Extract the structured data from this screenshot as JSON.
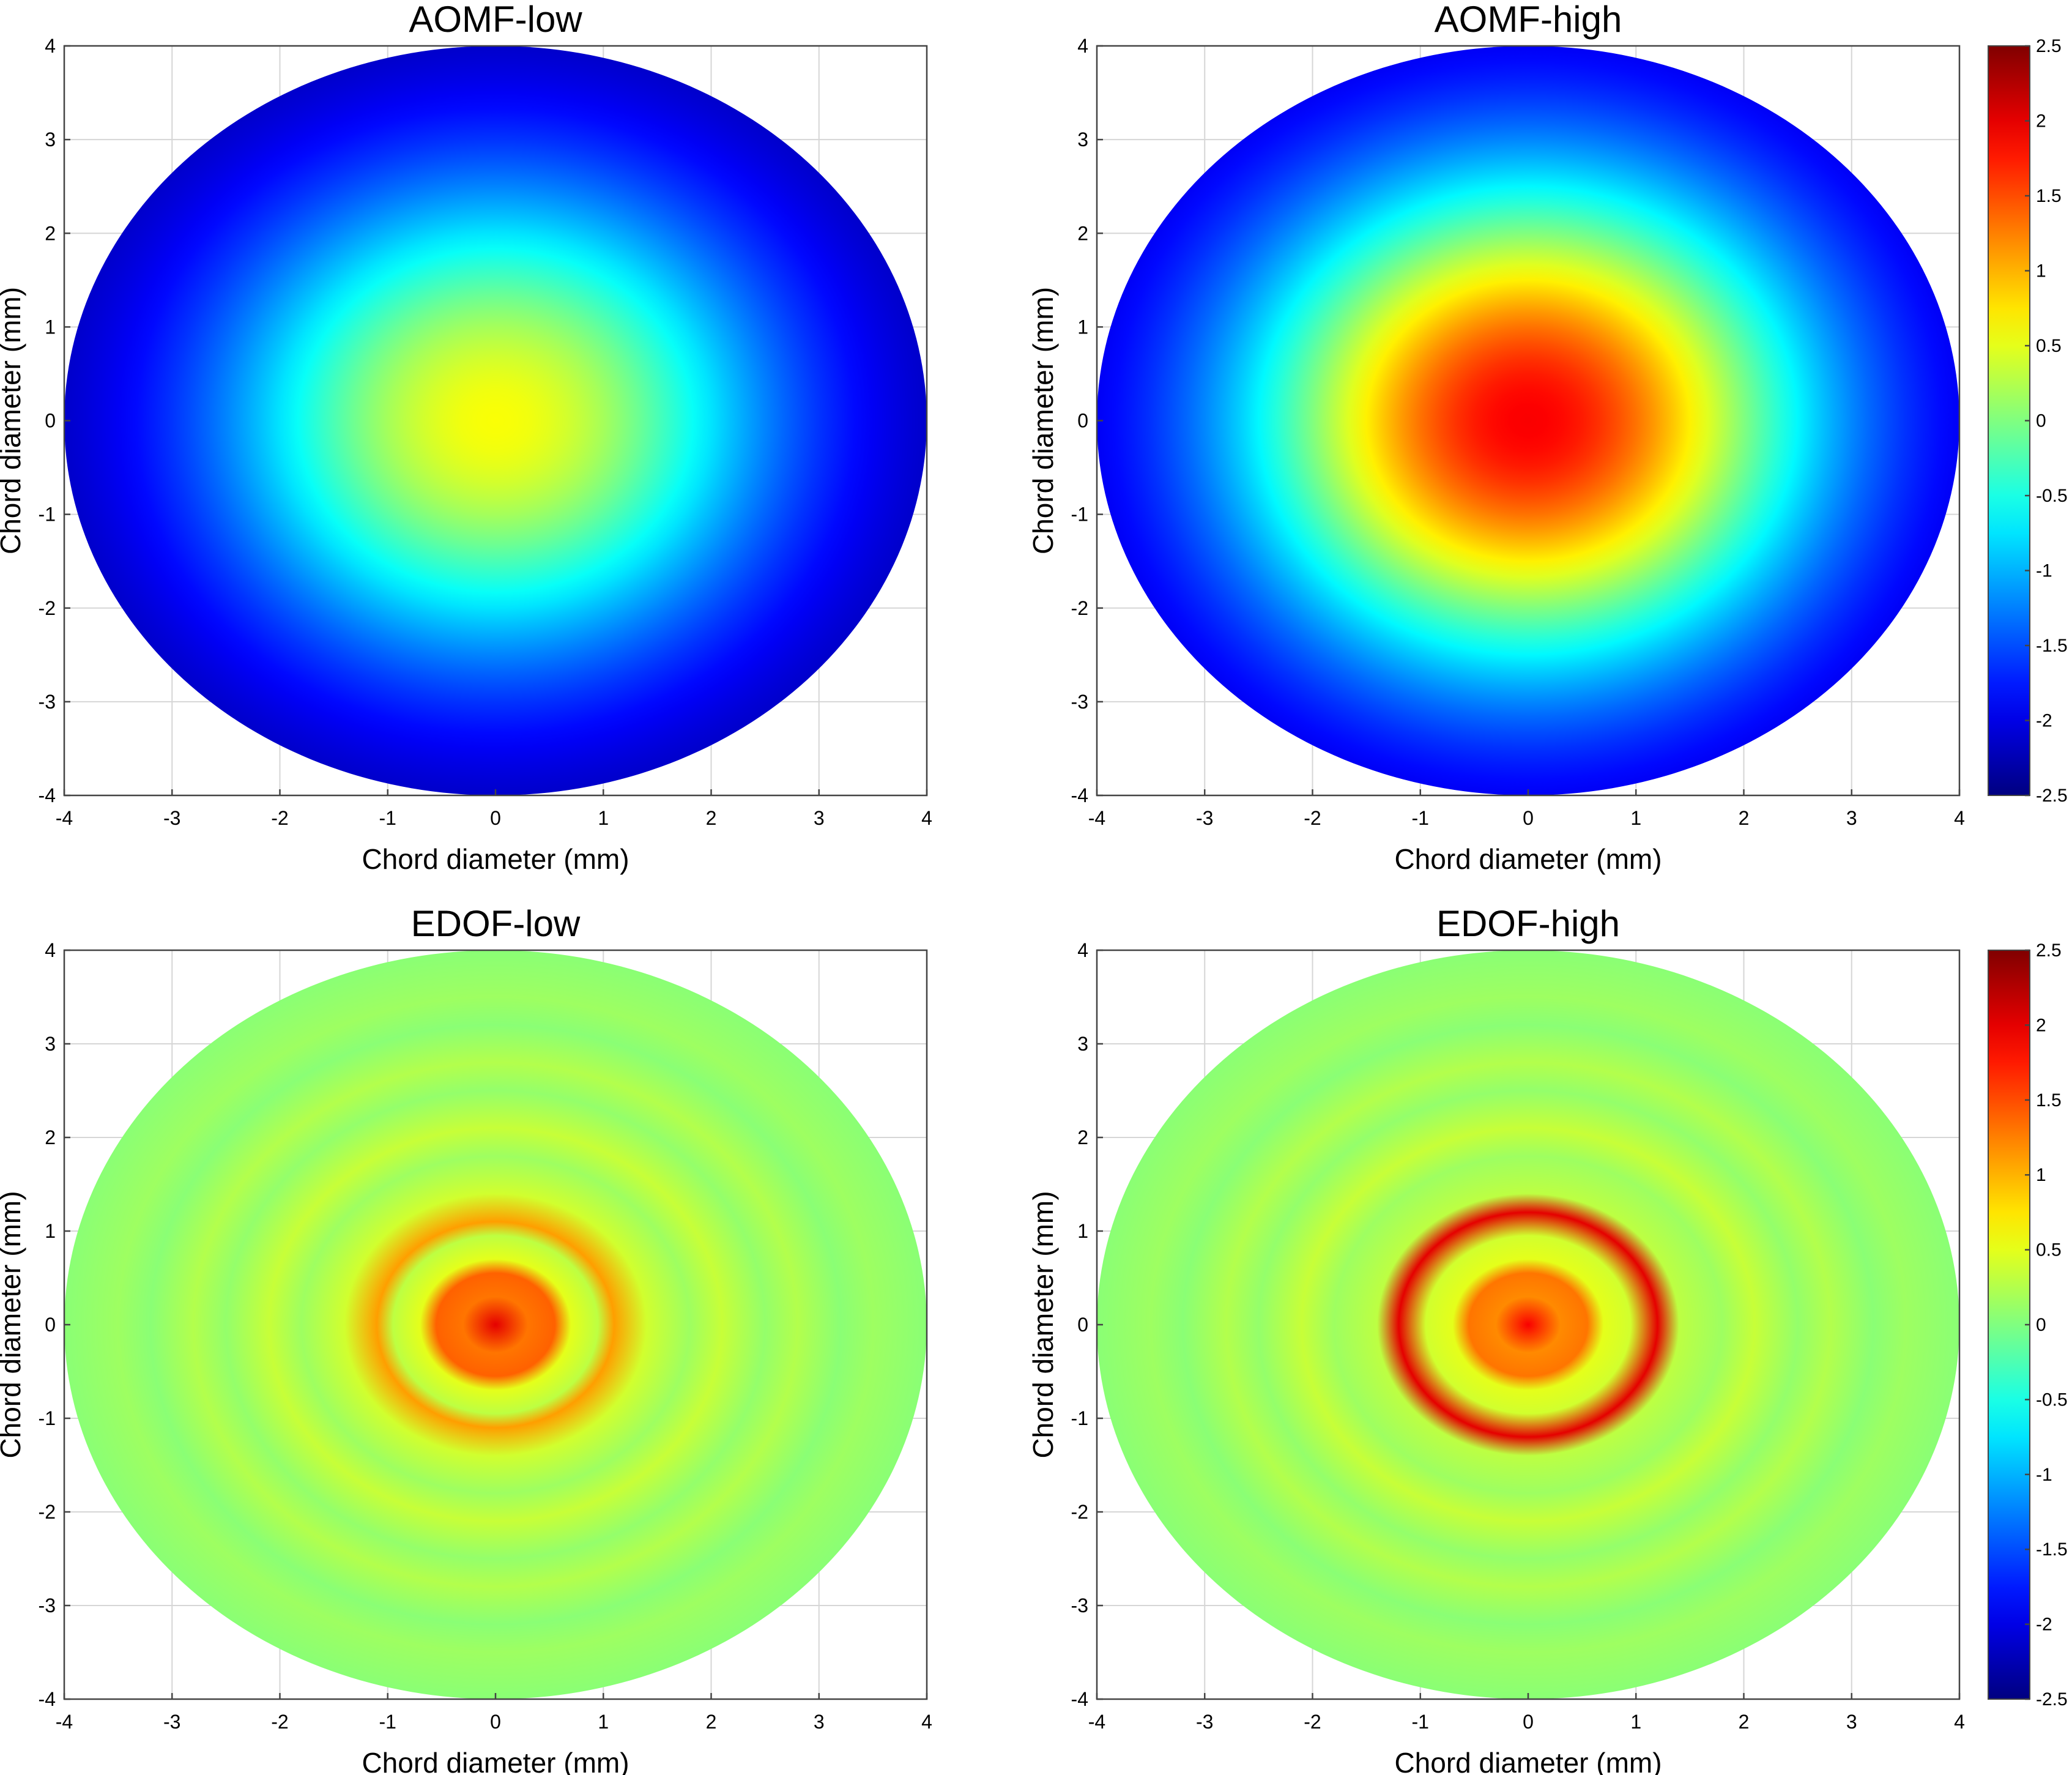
{
  "chart_data": [
    {
      "type": "heatmap",
      "title": "AOMF-low",
      "xlabel": "Chord diameter (mm)",
      "ylabel": "Chord diameter (mm)",
      "xlim": [
        -4,
        4
      ],
      "ylim": [
        -4,
        4
      ],
      "xticks": [
        "-4",
        "-3",
        "-2",
        "-1",
        "0",
        "1",
        "2",
        "3",
        "4"
      ],
      "yticks": [
        "4",
        "3",
        "2",
        "1",
        "0",
        "-1",
        "-2",
        "-3",
        "-4"
      ],
      "grid": true,
      "clim": [
        -2.5,
        2.5
      ],
      "pattern": "radial-monotonic",
      "center_value": 0.6,
      "edge_value": -2.4,
      "colorbar": false
    },
    {
      "type": "heatmap",
      "title": "AOMF-high",
      "xlabel": "Chord diameter (mm)",
      "ylabel": "Chord diameter (mm)",
      "xlim": [
        -4,
        4
      ],
      "ylim": [
        -4,
        4
      ],
      "xticks": [
        "-4",
        "-3",
        "-2",
        "-1",
        "0",
        "1",
        "2",
        "3",
        "4"
      ],
      "yticks": [
        "4",
        "3",
        "2",
        "1",
        "0",
        "-1",
        "-2",
        "-3",
        "-4"
      ],
      "grid": true,
      "clim": [
        -2.5,
        2.5
      ],
      "pattern": "radial-monotonic",
      "center_value": 1.9,
      "edge_value": -2.3,
      "colorbar": true,
      "colorbar_ticks": [
        "2.5",
        "2",
        "1.5",
        "1",
        "0.5",
        "0",
        "-0.5",
        "-1",
        "-1.5",
        "-2",
        "-2.5"
      ]
    },
    {
      "type": "heatmap",
      "title": "EDOF-low",
      "xlabel": "Chord diameter (mm)",
      "ylabel": "Chord diameter (mm)",
      "xlim": [
        -4,
        4
      ],
      "ylim": [
        -4,
        4
      ],
      "xticks": [
        "-4",
        "-3",
        "-2",
        "-1",
        "0",
        "1",
        "2",
        "3",
        "4"
      ],
      "yticks": [
        "4",
        "3",
        "2",
        "1",
        "0",
        "-1",
        "-2",
        "-3",
        "-4"
      ],
      "grid": true,
      "clim": [
        -2.5,
        2.5
      ],
      "pattern": "radial-rings",
      "profile_r": [
        0,
        0.3,
        0.55,
        0.7,
        0.95,
        1.1,
        1.4,
        1.8,
        2.1,
        2.5,
        2.8,
        3.2,
        3.5,
        4.0
      ],
      "profile_v": [
        2.0,
        1.3,
        1.4,
        0.5,
        0.3,
        1.1,
        0.4,
        0.15,
        0.35,
        0.1,
        0.25,
        0.05,
        0.15,
        0.05
      ],
      "colorbar": false
    },
    {
      "type": "heatmap",
      "title": "EDOF-high",
      "xlabel": "Chord diameter (mm)",
      "ylabel": "Chord diameter (mm)",
      "xlim": [
        -4,
        4
      ],
      "ylim": [
        -4,
        4
      ],
      "xticks": [
        "-4",
        "-3",
        "-2",
        "-1",
        "0",
        "1",
        "2",
        "3",
        "4"
      ],
      "yticks": [
        "4",
        "3",
        "2",
        "1",
        "0",
        "-1",
        "-2",
        "-3",
        "-4"
      ],
      "grid": true,
      "clim": [
        -2.5,
        2.5
      ],
      "pattern": "radial-rings",
      "profile_r": [
        0,
        0.3,
        0.55,
        0.7,
        0.95,
        1.2,
        1.4,
        1.8,
        2.1,
        2.5,
        2.8,
        3.2,
        3.5,
        4.0
      ],
      "profile_v": [
        1.9,
        1.2,
        1.3,
        0.5,
        0.4,
        2.0,
        0.3,
        0.15,
        0.35,
        0.1,
        0.25,
        0.05,
        0.15,
        0.05
      ],
      "colorbar": true,
      "colorbar_ticks": [
        "2.5",
        "2",
        "1.5",
        "1",
        "0.5",
        "0",
        "-0.5",
        "-1",
        "-1.5",
        "-2",
        "-2.5"
      ]
    }
  ],
  "colormap": "jet"
}
